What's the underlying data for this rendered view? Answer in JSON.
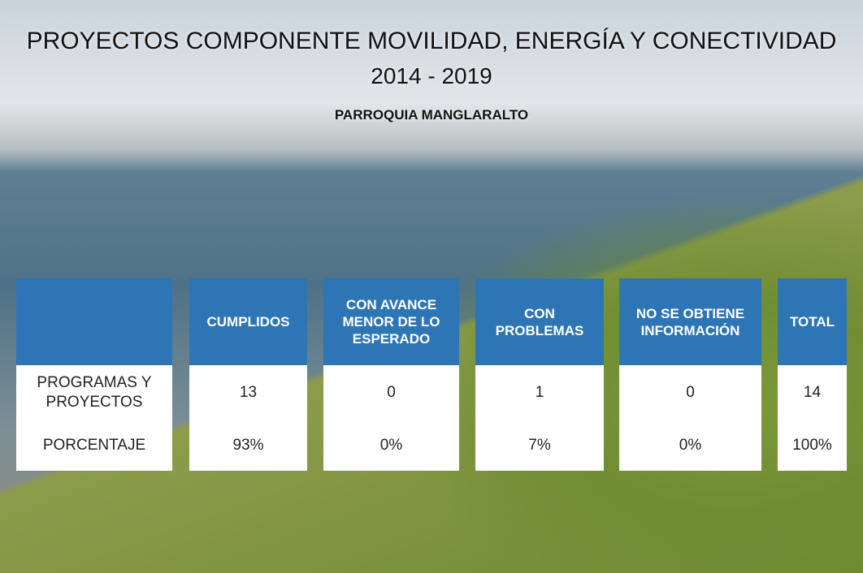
{
  "header": {
    "title": "PROYECTOS COMPONENTE MOVILIDAD, ENERGÍA Y CONECTIVIDAD",
    "years": "2014 - 2019",
    "subtitle": "PARROQUIA MANGLARALTO"
  },
  "table": {
    "columns": [
      "CUMPLIDOS",
      "CON AVANCE MENOR DE LO ESPERADO",
      "CON PROBLEMAS",
      "NO SE OBTIENE INFORMACIÓN",
      "TOTAL"
    ],
    "rows": [
      {
        "label": "PROGRAMAS Y PROYECTOS",
        "values": [
          "13",
          "0",
          "1",
          "0",
          "14"
        ]
      },
      {
        "label": "PORCENTAJE",
        "values": [
          "93%",
          "0%",
          "7%",
          "0%",
          "100%"
        ]
      }
    ]
  }
}
